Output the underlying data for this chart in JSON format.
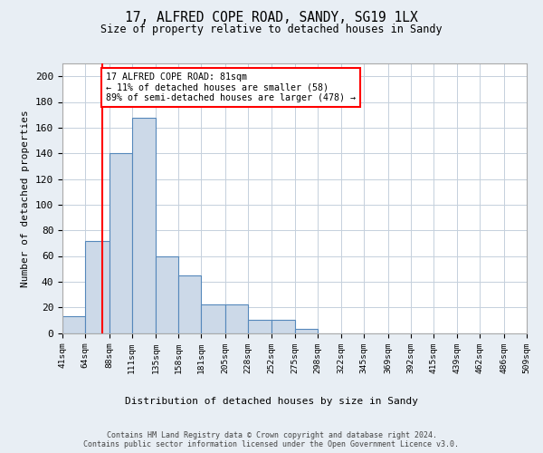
{
  "title1": "17, ALFRED COPE ROAD, SANDY, SG19 1LX",
  "title2": "Size of property relative to detached houses in Sandy",
  "xlabel": "Distribution of detached houses by size in Sandy",
  "ylabel": "Number of detached properties",
  "bin_edges": [
    41,
    64,
    88,
    111,
    135,
    158,
    181,
    205,
    228,
    252,
    275,
    298,
    322,
    345,
    369,
    392,
    415,
    439,
    462,
    486,
    509
  ],
  "bin_labels": [
    "41sqm",
    "64sqm",
    "88sqm",
    "111sqm",
    "135sqm",
    "158sqm",
    "181sqm",
    "205sqm",
    "228sqm",
    "252sqm",
    "275sqm",
    "298sqm",
    "322sqm",
    "345sqm",
    "369sqm",
    "392sqm",
    "415sqm",
    "439sqm",
    "462sqm",
    "486sqm",
    "509sqm"
  ],
  "bar_heights": [
    13,
    72,
    140,
    168,
    60,
    45,
    22,
    22,
    10,
    10,
    3,
    0,
    0,
    0,
    0,
    0,
    0,
    0,
    0,
    0
  ],
  "bar_color": "#ccd9e8",
  "bar_edge_color": "#5588bb",
  "red_line_x": 81,
  "annotation_text": "17 ALFRED COPE ROAD: 81sqm\n← 11% of detached houses are smaller (58)\n89% of semi-detached houses are larger (478) →",
  "annotation_box_color": "white",
  "annotation_box_edge_color": "red",
  "ylim": [
    0,
    210
  ],
  "yticks": [
    0,
    20,
    40,
    60,
    80,
    100,
    120,
    140,
    160,
    180,
    200
  ],
  "footer": "Contains HM Land Registry data © Crown copyright and database right 2024.\nContains public sector information licensed under the Open Government Licence v3.0.",
  "background_color": "#e8eef4",
  "plot_background": "white",
  "grid_color": "#c5d0dc"
}
